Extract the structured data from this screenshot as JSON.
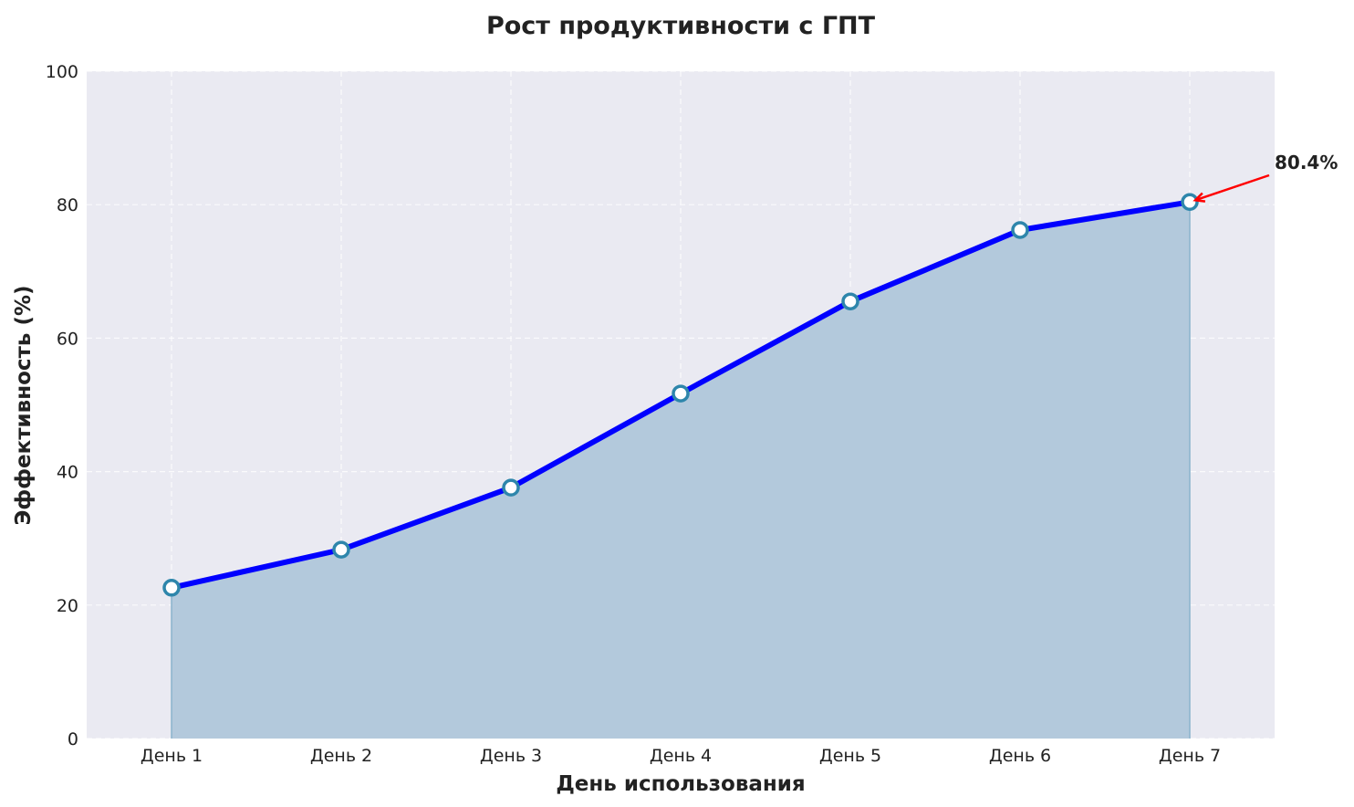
{
  "chart_data": {
    "type": "area",
    "title": "Рост продуктивности с ГПТ",
    "xlabel": "День использования",
    "ylabel": "Эффективность (%)",
    "categories": [
      "День 1",
      "День 2",
      "День 3",
      "День 4",
      "День 5",
      "День 6",
      "День 7"
    ],
    "values": [
      22.6,
      28.3,
      37.6,
      51.7,
      65.5,
      76.2,
      80.4
    ],
    "ylim": [
      0,
      100
    ],
    "yticks": [
      0,
      20,
      40,
      60,
      80,
      100
    ],
    "grid": true,
    "annotation": {
      "text": "80.4%",
      "category": "День 7",
      "value": 80.4
    },
    "colors": {
      "line": "#0000ff",
      "fill": "#b3c9dc",
      "marker_edge": "#2e86ab",
      "marker_face": "#ffffff",
      "arrow": "#ff0000",
      "plot_bg": "#eaeaf2"
    }
  }
}
